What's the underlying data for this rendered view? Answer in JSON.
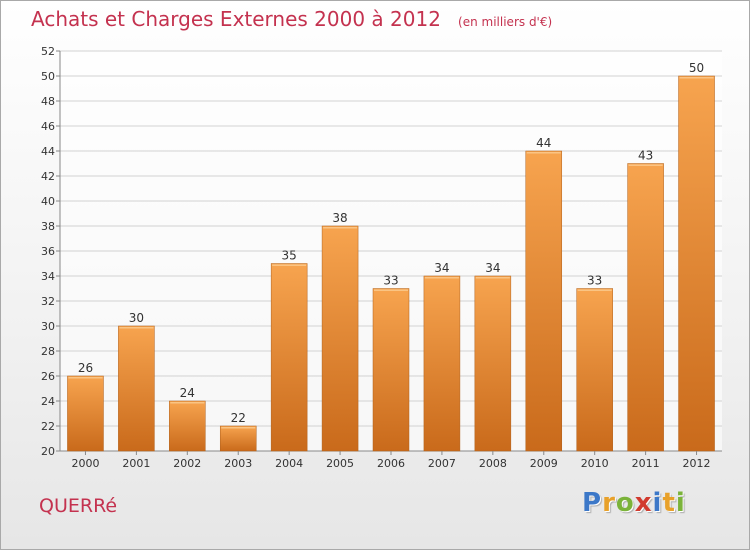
{
  "chart_data": {
    "type": "bar",
    "title": "Achats et Charges Externes 2000 à 2012",
    "subtitle": "(en milliers d'€)",
    "categories": [
      "2000",
      "2001",
      "2002",
      "2003",
      "2004",
      "2005",
      "2006",
      "2007",
      "2008",
      "2009",
      "2010",
      "2011",
      "2012"
    ],
    "values": [
      26,
      30,
      24,
      22,
      35,
      38,
      33,
      34,
      34,
      44,
      33,
      43,
      50
    ],
    "ylim": [
      20,
      52
    ],
    "yticks": [
      20,
      22,
      24,
      26,
      28,
      30,
      32,
      34,
      36,
      38,
      40,
      42,
      44,
      46,
      48,
      50,
      52
    ],
    "grid": true,
    "bar_color_top": "#f7a44f",
    "bar_color_bottom": "#c96a1b",
    "gridline_color": "#d2d2d2"
  },
  "footer": {
    "commune": "QUERRé",
    "logo_letters": [
      {
        "char": "P",
        "color": "#3c78c8"
      },
      {
        "char": "r",
        "color": "#e8a12a"
      },
      {
        "char": "o",
        "color": "#7bb33a"
      },
      {
        "char": "x",
        "color": "#d13a2e"
      },
      {
        "char": "i",
        "color": "#3c78c8"
      },
      {
        "char": "t",
        "color": "#e8a12a"
      },
      {
        "char": "i",
        "color": "#7bb33a"
      }
    ]
  }
}
